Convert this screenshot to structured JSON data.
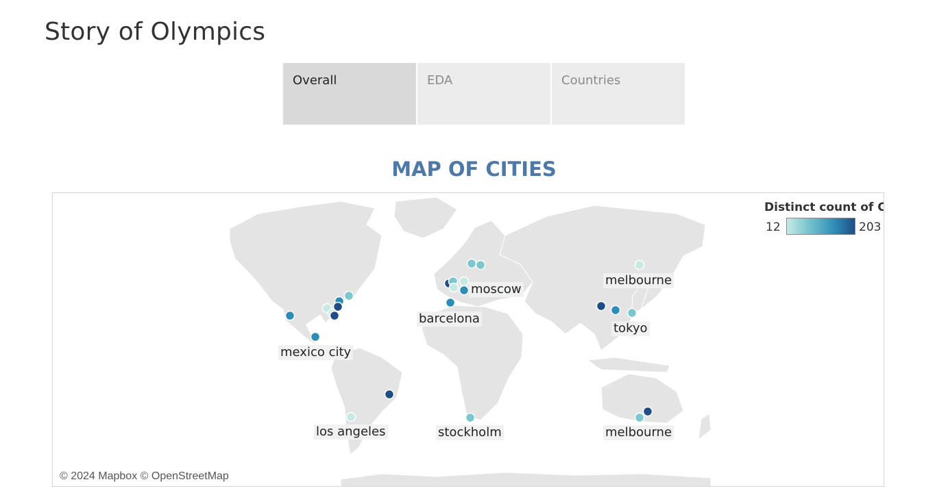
{
  "story": {
    "title": "Story of Olympics"
  },
  "tabs": [
    {
      "label": "Overall",
      "active": true
    },
    {
      "label": "EDA",
      "active": false
    },
    {
      "label": "Countries",
      "active": false
    }
  ],
  "map": {
    "title": "MAP OF CITIES",
    "legend": {
      "title": "Distinct count of C..",
      "min": "12",
      "max": "203",
      "colors": [
        "#c6e9e3",
        "#7cc7cf",
        "#2e8db7",
        "#1f4e86"
      ]
    },
    "labels": {
      "melbourne_north": "melbourne",
      "moscow": "moscow",
      "barcelona": "barcelona",
      "tokyo": "tokyo",
      "mexico_city": "mexico city",
      "los_angeles": "los angeles",
      "stockholm": "stockholm",
      "melbourne_south": "melbourne"
    },
    "attribution": "© 2024 Mapbox © OpenStreetMap",
    "land_color": "#e4e4e4"
  }
}
